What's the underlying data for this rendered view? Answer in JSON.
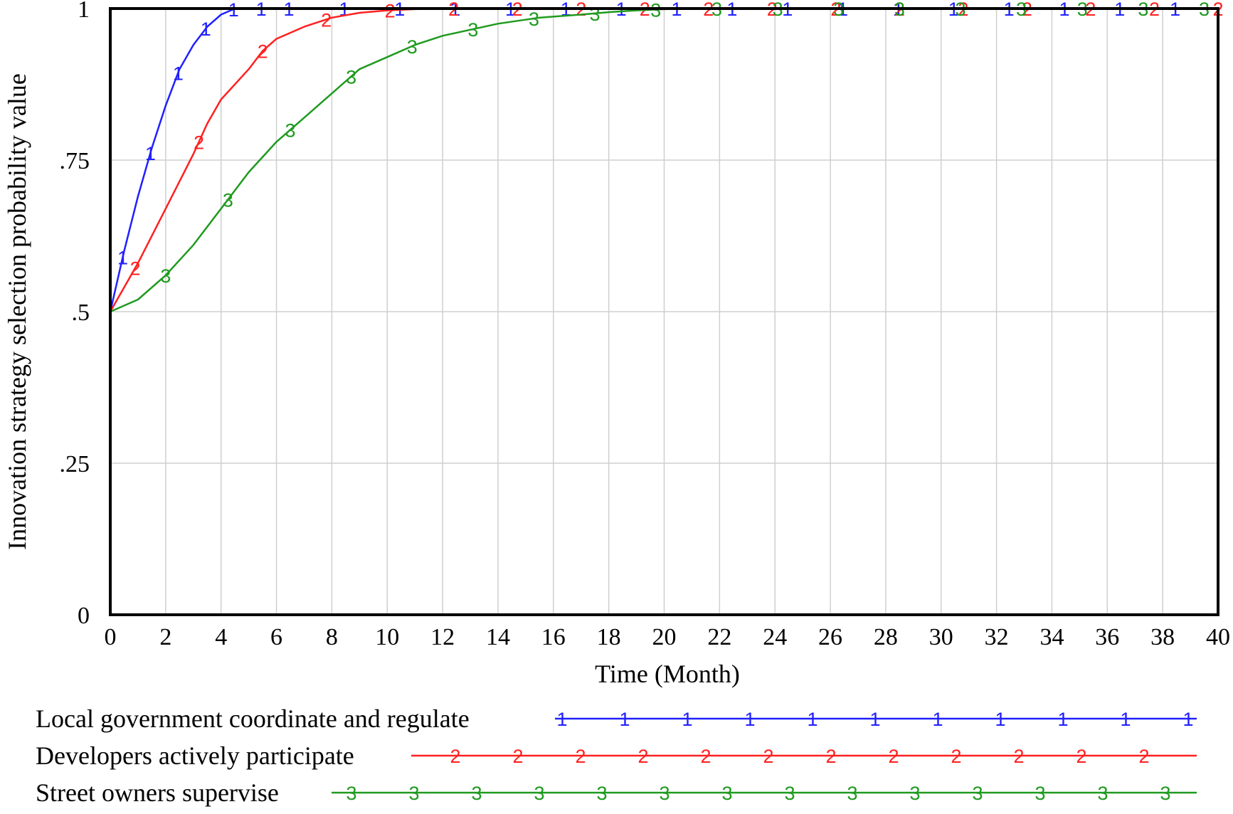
{
  "chart_data": {
    "type": "line",
    "title": "",
    "xlabel": "Time (Month)",
    "ylabel": "Innovation strategy selection probability value",
    "xlim": [
      0,
      40
    ],
    "ylim": [
      0,
      1
    ],
    "x_ticks": [
      "0",
      "2",
      "4",
      "6",
      "8",
      "10",
      "12",
      "14",
      "16",
      "18",
      "20",
      "22",
      "24",
      "26",
      "28",
      "30",
      "32",
      "34",
      "36",
      "38",
      "40"
    ],
    "y_ticks": [
      {
        "value": 0,
        "label": "0"
      },
      {
        "value": 0.25,
        "label": ".25"
      },
      {
        "value": 0.5,
        "label": ".5"
      },
      {
        "value": 0.75,
        "label": ".75"
      },
      {
        "value": 1,
        "label": "1"
      }
    ],
    "grid": true,
    "legend_position": "bottom",
    "series": [
      {
        "name": "Local government coordinate and regulate",
        "marker": "1",
        "color": "#2020ff",
        "x": [
          0,
          0.5,
          1,
          1.5,
          2,
          2.5,
          3,
          3.5,
          4,
          4.5,
          5,
          6,
          8,
          10,
          20,
          30,
          40
        ],
        "y": [
          0.5,
          0.6,
          0.69,
          0.77,
          0.84,
          0.9,
          0.94,
          0.97,
          0.99,
          1.0,
          1.0,
          1.0,
          1.0,
          1.0,
          1.0,
          1.0,
          1.0
        ]
      },
      {
        "name": "Developers actively participate",
        "marker": "2",
        "color": "#ff2020",
        "x": [
          0,
          1,
          2,
          3,
          3.5,
          4,
          5,
          5.5,
          6,
          7,
          8,
          9,
          10,
          11,
          12,
          20,
          30,
          40
        ],
        "y": [
          0.5,
          0.58,
          0.67,
          0.76,
          0.81,
          0.85,
          0.9,
          0.93,
          0.95,
          0.97,
          0.985,
          0.993,
          0.997,
          0.999,
          1.0,
          1.0,
          1.0,
          1.0
        ]
      },
      {
        "name": "Street owners supervise",
        "marker": "3",
        "color": "#1f9a1f",
        "x": [
          0,
          1,
          2,
          3,
          4,
          5,
          6,
          6.5,
          7,
          8,
          8.5,
          9,
          10,
          11,
          12,
          13,
          14,
          15.5,
          17,
          18,
          19,
          20,
          22,
          24,
          30,
          40
        ],
        "y": [
          0.5,
          0.52,
          0.56,
          0.61,
          0.67,
          0.73,
          0.78,
          0.8,
          0.82,
          0.86,
          0.88,
          0.9,
          0.92,
          0.94,
          0.955,
          0.965,
          0.975,
          0.985,
          0.99,
          0.994,
          0.997,
          0.999,
          1.0,
          1.0,
          1.0,
          1.0
        ]
      }
    ]
  }
}
